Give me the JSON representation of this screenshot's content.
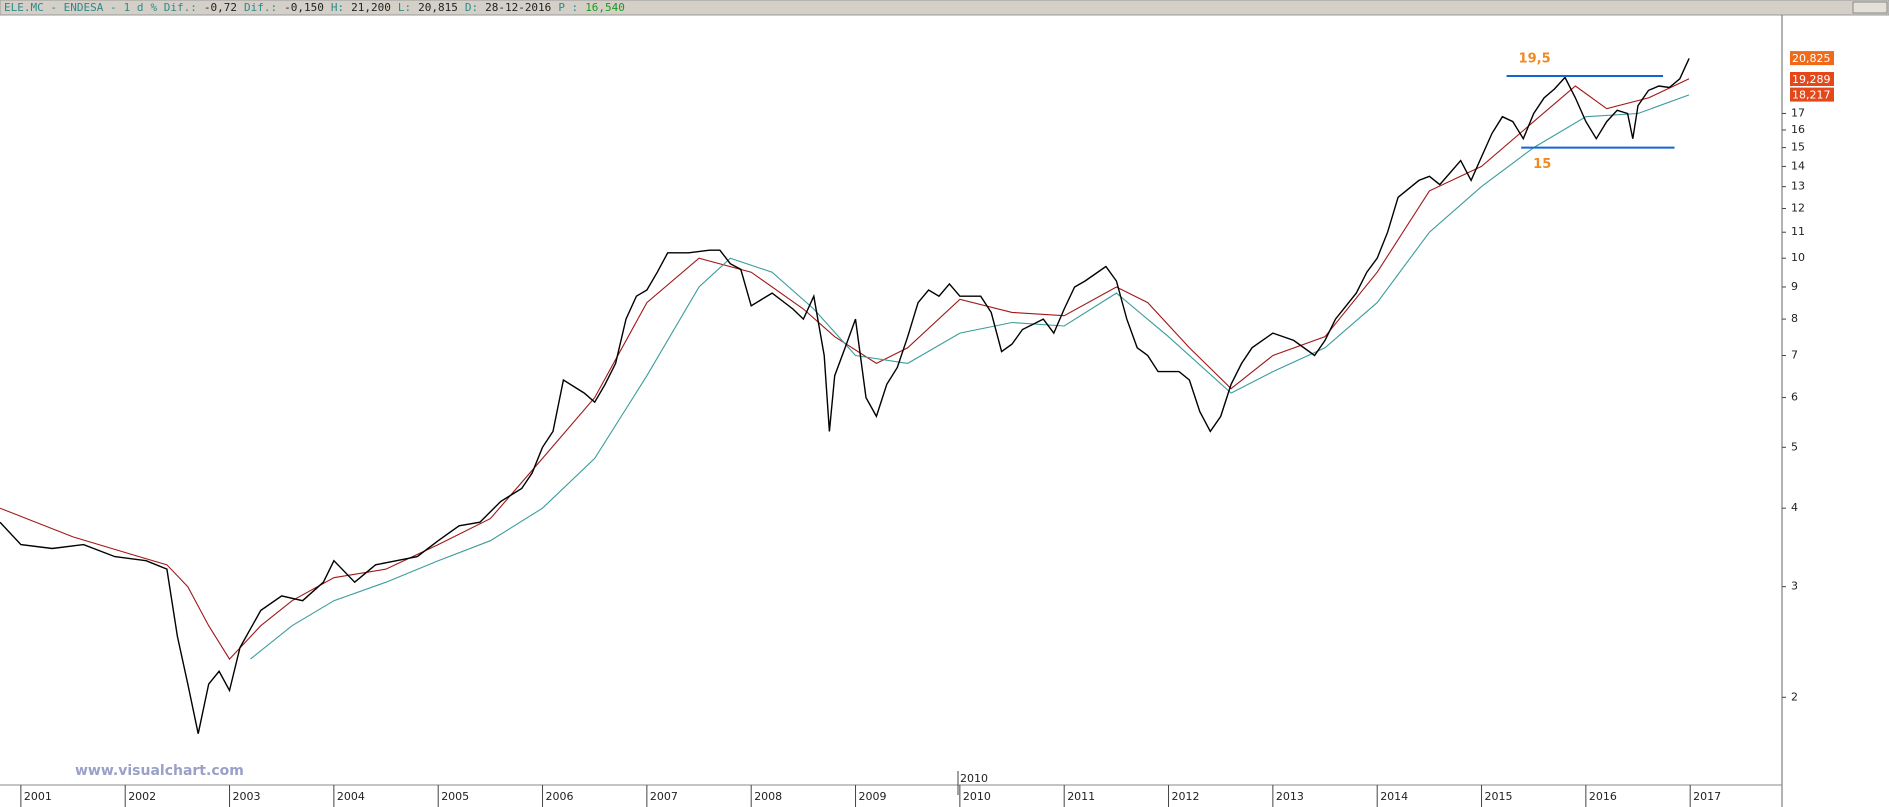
{
  "header": [
    "ELE.MC - ENDESA -",
    "1 d",
    "% Dif.:",
    "-0,72",
    "Dif.:",
    "-0,150",
    "H:",
    "21,200",
    "L:",
    "20,815",
    "D:",
    "28-12-2016",
    "P :",
    "16,540"
  ],
  "chart_data": {
    "type": "line",
    "log_scale": true,
    "xlim": [
      2000.8,
      2017.88
    ],
    "xticks": [
      2001,
      2002,
      2003,
      2004,
      2005,
      2006,
      2007,
      2008,
      2009,
      2010,
      2011,
      2012,
      2013,
      2014,
      2015,
      2016,
      2017
    ],
    "ylim": [
      1.45,
      24.3
    ],
    "yticks": [
      2,
      3,
      4,
      5,
      6,
      7,
      8,
      9,
      10,
      11,
      12,
      13,
      14,
      15,
      16,
      17
    ],
    "series": [
      {
        "color": "#000000",
        "x": [
          2000.8,
          2001.0,
          2001.3,
          2001.6,
          2001.9,
          2002.2,
          2002.4,
          2002.5,
          2002.6,
          2002.7,
          2002.8,
          2002.9,
          2003.0,
          2003.1,
          2003.3,
          2003.5,
          2003.7,
          2003.9,
          2004.0,
          2004.2,
          2004.4,
          2004.6,
          2004.8,
          2005.0,
          2005.2,
          2005.4,
          2005.6,
          2005.8,
          2005.9,
          2006.0,
          2006.1,
          2006.2,
          2006.4,
          2006.5,
          2006.6,
          2006.7,
          2006.8,
          2006.9,
          2007.0,
          2007.1,
          2007.2,
          2007.4,
          2007.6,
          2007.7,
          2007.8,
          2007.9,
          2008.0,
          2008.2,
          2008.4,
          2008.5,
          2008.6,
          2008.7,
          2008.75,
          2008.8,
          2008.9,
          2009.0,
          2009.1,
          2009.2,
          2009.3,
          2009.4,
          2009.5,
          2009.6,
          2009.7,
          2009.8,
          2009.9,
          2010.0,
          2010.2,
          2010.3,
          2010.4,
          2010.5,
          2010.6,
          2010.8,
          2010.9,
          2011.0,
          2011.1,
          2011.2,
          2011.4,
          2011.5,
          2011.6,
          2011.7,
          2011.8,
          2011.9,
          2012.1,
          2012.2,
          2012.3,
          2012.4,
          2012.5,
          2012.6,
          2012.7,
          2012.8,
          2012.9,
          2013.0,
          2013.2,
          2013.4,
          2013.5,
          2013.6,
          2013.8,
          2013.9,
          2014.0,
          2014.1,
          2014.2,
          2014.4,
          2014.5,
          2014.6,
          2014.8,
          2014.9,
          2015.0,
          2015.1,
          2015.2,
          2015.3,
          2015.4,
          2015.5,
          2015.6,
          2015.7,
          2015.8,
          2015.9,
          2016.0,
          2016.1,
          2016.2,
          2016.3,
          2016.4,
          2016.45,
          2016.5,
          2016.6,
          2016.7,
          2016.8,
          2016.9,
          2016.99
        ],
        "values": [
          3.8,
          3.5,
          3.45,
          3.5,
          3.35,
          3.3,
          3.2,
          2.5,
          2.1,
          1.75,
          2.1,
          2.2,
          2.05,
          2.4,
          2.75,
          2.9,
          2.85,
          3.05,
          3.3,
          3.05,
          3.25,
          3.3,
          3.35,
          3.55,
          3.75,
          3.8,
          4.1,
          4.3,
          4.55,
          5.0,
          5.3,
          6.4,
          6.1,
          5.9,
          6.3,
          6.8,
          8.0,
          8.7,
          8.9,
          9.5,
          10.2,
          10.2,
          10.3,
          10.3,
          9.8,
          9.6,
          8.4,
          8.8,
          8.3,
          8.0,
          8.7,
          7.0,
          5.3,
          6.5,
          7.2,
          8.0,
          6.0,
          5.6,
          6.3,
          6.7,
          7.5,
          8.5,
          8.9,
          8.7,
          9.1,
          8.7,
          8.7,
          8.2,
          7.1,
          7.3,
          7.7,
          8.0,
          7.6,
          8.3,
          9.0,
          9.2,
          9.7,
          9.2,
          8.0,
          7.2,
          7.0,
          6.6,
          6.6,
          6.4,
          5.7,
          5.3,
          5.6,
          6.3,
          6.8,
          7.2,
          7.4,
          7.6,
          7.4,
          7.0,
          7.4,
          8.0,
          8.8,
          9.5,
          10.0,
          11.0,
          12.5,
          13.3,
          13.5,
          13.1,
          14.3,
          13.3,
          14.5,
          15.8,
          16.8,
          16.5,
          15.5,
          17.0,
          18.0,
          18.6,
          19.4,
          18.0,
          16.5,
          15.5,
          16.5,
          17.2,
          17.0,
          15.5,
          17.5,
          18.5,
          18.8,
          18.7,
          19.3,
          20.8
        ]
      },
      {
        "color": "#a01818",
        "x": [
          2000.8,
          2001.5,
          2002.0,
          2002.4,
          2002.6,
          2002.8,
          2003.0,
          2003.3,
          2003.6,
          2004.0,
          2004.5,
          2005.0,
          2005.5,
          2006.0,
          2006.5,
          2007.0,
          2007.5,
          2008.0,
          2008.5,
          2008.8,
          2009.2,
          2009.5,
          2010.0,
          2010.5,
          2011.0,
          2011.5,
          2011.8,
          2012.2,
          2012.6,
          2013.0,
          2013.5,
          2014.0,
          2014.5,
          2015.0,
          2015.5,
          2015.9,
          2016.2,
          2016.6,
          2016.99
        ],
        "values": [
          4.0,
          3.6,
          3.4,
          3.25,
          3.0,
          2.6,
          2.3,
          2.6,
          2.85,
          3.1,
          3.2,
          3.5,
          3.85,
          4.8,
          6.0,
          8.5,
          10.0,
          9.5,
          8.3,
          7.5,
          6.8,
          7.2,
          8.6,
          8.2,
          8.1,
          9.0,
          8.5,
          7.2,
          6.2,
          7.0,
          7.5,
          9.5,
          12.8,
          14.0,
          16.5,
          18.8,
          17.3,
          18.0,
          19.3
        ]
      },
      {
        "color": "#3c9c9c",
        "x": [
          2003.2,
          2003.6,
          2004.0,
          2004.5,
          2005.0,
          2005.5,
          2006.0,
          2006.5,
          2007.0,
          2007.5,
          2007.8,
          2008.2,
          2008.6,
          2009.0,
          2009.5,
          2010.0,
          2010.5,
          2011.0,
          2011.5,
          2012.0,
          2012.6,
          2013.0,
          2013.5,
          2014.0,
          2014.5,
          2015.0,
          2015.5,
          2016.0,
          2016.5,
          2016.99
        ],
        "values": [
          2.3,
          2.6,
          2.85,
          3.05,
          3.3,
          3.55,
          4.0,
          4.8,
          6.5,
          9.0,
          10.0,
          9.5,
          8.3,
          7.0,
          6.8,
          7.6,
          7.9,
          7.8,
          8.8,
          7.5,
          6.1,
          6.6,
          7.2,
          8.5,
          11.0,
          13.0,
          15.0,
          16.8,
          17.0,
          18.2
        ]
      }
    ],
    "levels": [
      {
        "value": 19.5,
        "label": "19,5",
        "x": [
          2015.24,
          2016.74
        ],
        "color": "#1464d2"
      },
      {
        "value": 15,
        "label": "15",
        "x": [
          2015.38,
          2016.85
        ],
        "color": "#1464d2"
      }
    ],
    "last_labels": [
      {
        "value": 20.825,
        "label": "20,825"
      },
      {
        "value": 19.289,
        "label": "19,289"
      },
      {
        "value": 18.217,
        "label": "18,217"
      }
    ],
    "cursor_label": "2010",
    "watermark": "www.visualchart.com"
  }
}
